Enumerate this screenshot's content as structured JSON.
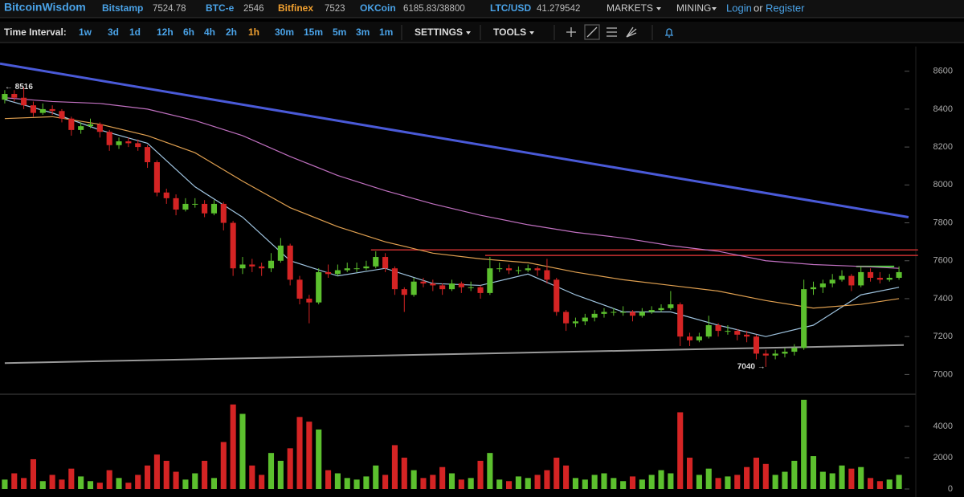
{
  "header": {
    "brand": "BitcoinWisdom",
    "tickers": [
      {
        "name": "Bitstamp",
        "price": "7524.78"
      },
      {
        "name": "BTC-e",
        "price": "2546"
      },
      {
        "name": "Bitfinex",
        "price": "7523"
      },
      {
        "name": "OKCoin",
        "price": "6185.83/38800"
      },
      {
        "name": "LTC/USD",
        "price": "41.279542"
      }
    ],
    "menus": [
      "MARKETS",
      "MINING"
    ],
    "login": "Login",
    "or": "or",
    "register": "Register"
  },
  "toolbar": {
    "label": "Time Interval:",
    "intervals": [
      "1w",
      "3d",
      "1d",
      "12h",
      "6h",
      "4h",
      "2h",
      "1h",
      "30m",
      "15m",
      "5m",
      "3m",
      "1m"
    ],
    "active": "1h",
    "settings": "SETTINGS",
    "tools": "TOOLS"
  },
  "chart_data": {
    "type": "candlestick",
    "up_color": "#5cc02e",
    "down_color": "#d42424",
    "ylim": [
      6900,
      8730
    ],
    "yticks": [
      7000,
      7200,
      7400,
      7600,
      7800,
      8000,
      8200,
      8400,
      8600
    ],
    "candles": [
      [
        8450,
        8500,
        8430,
        8480
      ],
      [
        8480,
        8500,
        8440,
        8460
      ],
      [
        8460,
        8516,
        8400,
        8420
      ],
      [
        8420,
        8440,
        8360,
        8380
      ],
      [
        8380,
        8430,
        8370,
        8400
      ],
      [
        8400,
        8420,
        8370,
        8390
      ],
      [
        8390,
        8400,
        8330,
        8350
      ],
      [
        8350,
        8360,
        8260,
        8290
      ],
      [
        8290,
        8330,
        8270,
        8310
      ],
      [
        8310,
        8350,
        8300,
        8320
      ],
      [
        8320,
        8330,
        8250,
        8280
      ],
      [
        8280,
        8290,
        8180,
        8210
      ],
      [
        8210,
        8250,
        8190,
        8230
      ],
      [
        8230,
        8250,
        8200,
        8220
      ],
      [
        8220,
        8240,
        8180,
        8200
      ],
      [
        8200,
        8210,
        8090,
        8120
      ],
      [
        8120,
        8130,
        7940,
        7960
      ],
      [
        7960,
        7980,
        7900,
        7930
      ],
      [
        7930,
        7950,
        7840,
        7870
      ],
      [
        7870,
        7930,
        7860,
        7900
      ],
      [
        7900,
        7930,
        7880,
        7900
      ],
      [
        7900,
        7920,
        7830,
        7850
      ],
      [
        7850,
        7920,
        7840,
        7900
      ],
      [
        7900,
        7910,
        7760,
        7800
      ],
      [
        7800,
        7810,
        7520,
        7560
      ],
      [
        7560,
        7620,
        7530,
        7580
      ],
      [
        7580,
        7610,
        7540,
        7570
      ],
      [
        7570,
        7590,
        7520,
        7560
      ],
      [
        7560,
        7640,
        7540,
        7600
      ],
      [
        7600,
        7720,
        7590,
        7680
      ],
      [
        7680,
        7690,
        7470,
        7500
      ],
      [
        7500,
        7520,
        7370,
        7400
      ],
      [
        7400,
        7420,
        7270,
        7380
      ],
      [
        7380,
        7560,
        7370,
        7540
      ],
      [
        7540,
        7580,
        7510,
        7530
      ],
      [
        7530,
        7580,
        7520,
        7550
      ],
      [
        7550,
        7590,
        7540,
        7560
      ],
      [
        7560,
        7590,
        7540,
        7560
      ],
      [
        7560,
        7600,
        7550,
        7570
      ],
      [
        7570,
        7650,
        7560,
        7620
      ],
      [
        7620,
        7640,
        7540,
        7560
      ],
      [
        7560,
        7570,
        7420,
        7450
      ],
      [
        7450,
        7460,
        7330,
        7420
      ],
      [
        7420,
        7510,
        7410,
        7490
      ],
      [
        7490,
        7510,
        7460,
        7480
      ],
      [
        7480,
        7500,
        7440,
        7470
      ],
      [
        7470,
        7480,
        7420,
        7450
      ],
      [
        7450,
        7500,
        7440,
        7480
      ],
      [
        7480,
        7490,
        7430,
        7460
      ],
      [
        7460,
        7490,
        7440,
        7460
      ],
      [
        7460,
        7470,
        7400,
        7430
      ],
      [
        7430,
        7620,
        7420,
        7560
      ],
      [
        7560,
        7590,
        7540,
        7560
      ],
      [
        7560,
        7580,
        7530,
        7550
      ],
      [
        7550,
        7570,
        7530,
        7550
      ],
      [
        7550,
        7580,
        7540,
        7560
      ],
      [
        7560,
        7570,
        7520,
        7550
      ],
      [
        7550,
        7610,
        7480,
        7500
      ],
      [
        7500,
        7510,
        7310,
        7330
      ],
      [
        7330,
        7340,
        7230,
        7270
      ],
      [
        7270,
        7300,
        7250,
        7280
      ],
      [
        7280,
        7320,
        7260,
        7300
      ],
      [
        7300,
        7340,
        7280,
        7320
      ],
      [
        7320,
        7350,
        7300,
        7330
      ],
      [
        7330,
        7350,
        7310,
        7330
      ],
      [
        7330,
        7360,
        7310,
        7330
      ],
      [
        7330,
        7340,
        7280,
        7310
      ],
      [
        7310,
        7350,
        7300,
        7330
      ],
      [
        7330,
        7360,
        7320,
        7340
      ],
      [
        7340,
        7370,
        7330,
        7350
      ],
      [
        7350,
        7440,
        7340,
        7370
      ],
      [
        7370,
        7380,
        7150,
        7200
      ],
      [
        7200,
        7220,
        7150,
        7180
      ],
      [
        7180,
        7220,
        7170,
        7200
      ],
      [
        7200,
        7310,
        7190,
        7260
      ],
      [
        7260,
        7270,
        7200,
        7230
      ],
      [
        7230,
        7260,
        7210,
        7230
      ],
      [
        7230,
        7240,
        7180,
        7210
      ],
      [
        7210,
        7230,
        7170,
        7200
      ],
      [
        7200,
        7210,
        7080,
        7110
      ],
      [
        7110,
        7130,
        7040,
        7100
      ],
      [
        7100,
        7130,
        7080,
        7110
      ],
      [
        7110,
        7140,
        7090,
        7120
      ],
      [
        7120,
        7160,
        7100,
        7140
      ],
      [
        7140,
        7500,
        7130,
        7450
      ],
      [
        7450,
        7490,
        7420,
        7460
      ],
      [
        7460,
        7500,
        7430,
        7480
      ],
      [
        7480,
        7530,
        7460,
        7500
      ],
      [
        7500,
        7550,
        7490,
        7520
      ],
      [
        7520,
        7530,
        7440,
        7470
      ],
      [
        7470,
        7570,
        7460,
        7540
      ],
      [
        7540,
        7560,
        7490,
        7510
      ],
      [
        7510,
        7540,
        7480,
        7500
      ],
      [
        7500,
        7530,
        7490,
        7510
      ],
      [
        7510,
        7570,
        7500,
        7540
      ]
    ],
    "moving_averages": [
      {
        "color": "#9fc4e0",
        "x": [
          0,
          5,
          10,
          15,
          20,
          25,
          30,
          35,
          40,
          45,
          50,
          55,
          60,
          65,
          70,
          75,
          80,
          85,
          90,
          94
        ],
        "values": [
          8450,
          8380,
          8290,
          8220,
          7990,
          7830,
          7600,
          7520,
          7560,
          7480,
          7470,
          7530,
          7420,
          7330,
          7330,
          7260,
          7200,
          7260,
          7420,
          7460
        ]
      },
      {
        "color": "#e0a050",
        "x": [
          0,
          5,
          10,
          15,
          20,
          25,
          30,
          35,
          40,
          45,
          50,
          55,
          60,
          65,
          70,
          75,
          80,
          85,
          90,
          94
        ],
        "values": [
          8350,
          8360,
          8320,
          8260,
          8170,
          8020,
          7880,
          7780,
          7700,
          7640,
          7610,
          7590,
          7540,
          7500,
          7470,
          7440,
          7390,
          7350,
          7370,
          7400
        ]
      },
      {
        "color": "#c070c0",
        "x": [
          0,
          5,
          10,
          15,
          20,
          25,
          30,
          35,
          40,
          45,
          50,
          55,
          60,
          65,
          70,
          75,
          80,
          85,
          90,
          94
        ],
        "values": [
          8460,
          8440,
          8430,
          8400,
          8340,
          8260,
          8150,
          8050,
          7970,
          7900,
          7840,
          7790,
          7750,
          7720,
          7680,
          7650,
          7600,
          7580,
          7570,
          7560
        ]
      }
    ],
    "trendlines": [
      {
        "color": "#4a5ad8",
        "width": 3,
        "from": [
          -0.5,
          8640
        ],
        "to": [
          95,
          7830
        ]
      },
      {
        "color": "#999999",
        "width": 2,
        "from": [
          0,
          7060
        ],
        "to": [
          94.5,
          7155
        ]
      },
      {
        "color": "#c83030",
        "width": 1.5,
        "from": [
          38.5,
          7657
        ],
        "to": [
          96,
          7657
        ]
      },
      {
        "color": "#c83030",
        "width": 1.5,
        "from": [
          50.5,
          7628
        ],
        "to": [
          96,
          7628
        ]
      },
      {
        "color": "#50d040",
        "width": 2,
        "from": [
          89.5,
          7570
        ],
        "to": [
          93.5,
          7570
        ]
      }
    ],
    "annotations": [
      {
        "label": "← 8516",
        "value": 8516,
        "at": 0
      },
      {
        "label": "7040 →",
        "value": 7040,
        "at": 77
      }
    ],
    "volume": {
      "ylim": [
        0,
        5900
      ],
      "yticks": [
        0,
        2000,
        4000
      ],
      "values": [
        600,
        1000,
        700,
        1900,
        500,
        900,
        600,
        1300,
        800,
        500,
        400,
        1200,
        700,
        400,
        900,
        1500,
        2200,
        1800,
        1100,
        600,
        1000,
        1800,
        700,
        3000,
        5400,
        4800,
        1500,
        900,
        2300,
        1800,
        2600,
        4600,
        4300,
        3800,
        1200,
        1000,
        700,
        600,
        800,
        1500,
        900,
        2800,
        2000,
        1200,
        700,
        900,
        1400,
        1000,
        600,
        700,
        1800,
        2300,
        600,
        500,
        800,
        700,
        900,
        1200,
        2000,
        1500,
        700,
        600,
        900,
        1000,
        700,
        500,
        800,
        600,
        900,
        1200,
        1000,
        4900,
        2000,
        900,
        1300,
        700,
        800,
        900,
        1400,
        2000,
        1600,
        900,
        1100,
        1800,
        5700,
        2100,
        1100,
        1000,
        1500,
        1300,
        1400,
        700,
        500,
        600,
        900
      ]
    }
  }
}
